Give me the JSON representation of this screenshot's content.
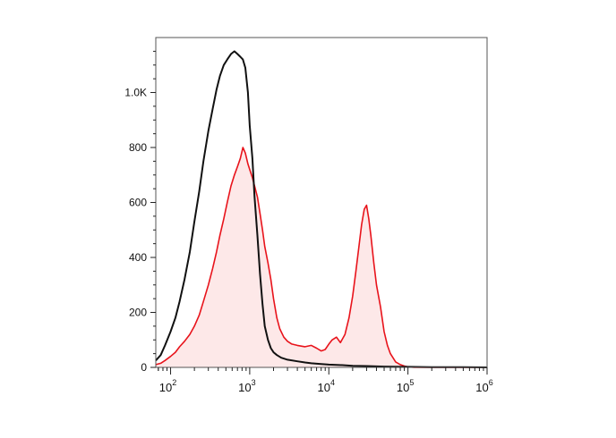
{
  "chart_data": {
    "type": "area",
    "xscale": "log",
    "xlim": [
      65,
      1000000
    ],
    "ylim": [
      0,
      1200
    ],
    "grid": false,
    "legend": false,
    "title": "",
    "xlabel": "",
    "ylabel": "",
    "x_ticks": [
      {
        "base": "10",
        "exp": "2",
        "value": 100
      },
      {
        "base": "10",
        "exp": "3",
        "value": 1000
      },
      {
        "base": "10",
        "exp": "4",
        "value": 10000
      },
      {
        "base": "10",
        "exp": "5",
        "value": 100000
      },
      {
        "base": "10",
        "exp": "6",
        "value": 1000000
      }
    ],
    "y_ticks": [
      {
        "label": "0",
        "value": 0
      },
      {
        "label": "200",
        "value": 200
      },
      {
        "label": "400",
        "value": 400
      },
      {
        "label": "600",
        "value": 600
      },
      {
        "label": "800",
        "value": 800
      },
      {
        "label": "1.0K",
        "value": 1000
      }
    ],
    "series": [
      {
        "style": "filled",
        "color": "#e8131b",
        "fill": "#fde8e8",
        "x": [
          65,
          75,
          85,
          100,
          115,
          130,
          150,
          175,
          200,
          230,
          260,
          300,
          340,
          380,
          420,
          470,
          520,
          580,
          640,
          700,
          760,
          820,
          880,
          950,
          1000,
          1080,
          1150,
          1250,
          1350,
          1450,
          1550,
          1700,
          1850,
          2000,
          2200,
          2400,
          2700,
          3000,
          3400,
          4000,
          5000,
          6000,
          7000,
          8000,
          9000,
          10000,
          11000,
          12500,
          14000,
          16000,
          18000,
          20000,
          22000,
          24000,
          26000,
          28000,
          30000,
          32000,
          34000,
          37000,
          40000,
          45000,
          50000,
          55000,
          60000,
          70000,
          80000,
          90000,
          100000,
          120000,
          200000,
          500000,
          1000000
        ],
        "y": [
          10,
          15,
          25,
          40,
          55,
          75,
          95,
          120,
          150,
          190,
          240,
          300,
          360,
          420,
          480,
          540,
          600,
          660,
          700,
          730,
          760,
          800,
          780,
          740,
          720,
          690,
          660,
          620,
          560,
          500,
          440,
          380,
          320,
          250,
          180,
          140,
          110,
          95,
          85,
          80,
          75,
          80,
          70,
          60,
          65,
          85,
          100,
          110,
          90,
          120,
          180,
          260,
          350,
          440,
          520,
          575,
          590,
          540,
          480,
          380,
          300,
          220,
          130,
          80,
          50,
          20,
          10,
          5,
          2,
          0,
          0,
          0,
          0
        ]
      },
      {
        "style": "line",
        "color": "#111111",
        "x": [
          65,
          75,
          85,
          100,
          115,
          130,
          150,
          175,
          200,
          230,
          260,
          300,
          340,
          380,
          420,
          470,
          520,
          580,
          640,
          700,
          760,
          820,
          880,
          950,
          1000,
          1080,
          1150,
          1250,
          1350,
          1450,
          1550,
          1700,
          1850,
          2000,
          2200,
          2500,
          3000,
          4000,
          5000,
          6000,
          8000,
          10000,
          15000,
          20000,
          30000,
          50000,
          100000,
          200000,
          500000,
          1000000
        ],
        "y": [
          25,
          45,
          80,
          130,
          180,
          240,
          320,
          420,
          530,
          640,
          750,
          860,
          940,
          1010,
          1060,
          1100,
          1120,
          1140,
          1150,
          1140,
          1130,
          1120,
          1090,
          1000,
          880,
          760,
          620,
          480,
          340,
          230,
          150,
          100,
          70,
          55,
          45,
          35,
          28,
          22,
          18,
          15,
          12,
          10,
          8,
          6,
          5,
          3,
          2,
          1,
          1,
          0
        ]
      }
    ]
  }
}
